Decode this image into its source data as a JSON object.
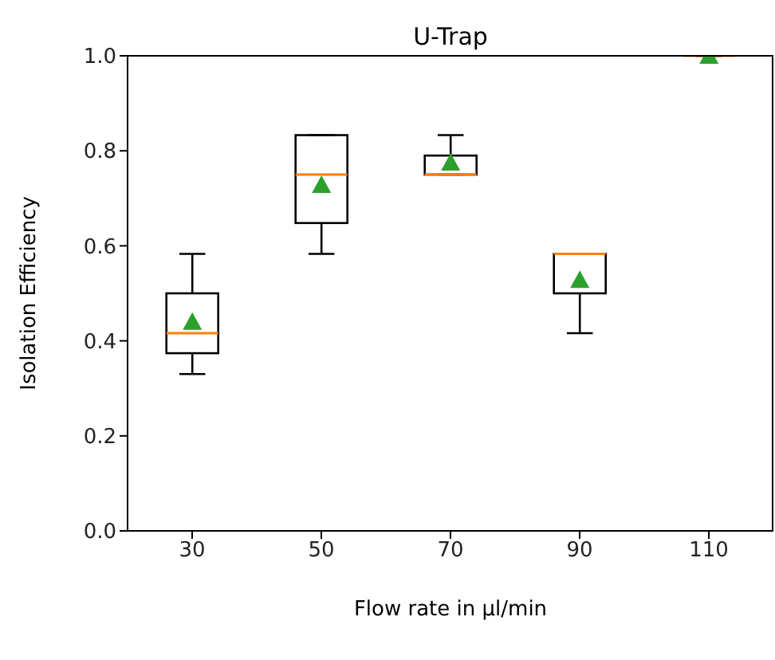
{
  "chart_data": {
    "type": "box",
    "title": "U-Trap",
    "xlabel": "Flow rate in μl/min",
    "ylabel": "Isolation Efficiency",
    "categories": [
      "30",
      "50",
      "70",
      "90",
      "110"
    ],
    "boxes": [
      {
        "low": 0.33,
        "q1": 0.374,
        "median": 0.416,
        "q3": 0.5,
        "high": 0.583,
        "mean": 0.44
      },
      {
        "low": 0.583,
        "q1": 0.648,
        "median": 0.75,
        "q3": 0.833,
        "high": 0.833,
        "mean": 0.728
      },
      {
        "low": 0.75,
        "q1": 0.75,
        "median": 0.75,
        "q3": 0.79,
        "high": 0.833,
        "mean": 0.775
      },
      {
        "low": 0.416,
        "q1": 0.5,
        "median": 0.583,
        "q3": 0.583,
        "high": 0.583,
        "mean": 0.528
      },
      {
        "low": 1.0,
        "q1": 1.0,
        "median": 1.0,
        "q3": 1.0,
        "high": 1.0,
        "mean": 1.0
      }
    ],
    "ylim": [
      0,
      1
    ],
    "yticks": [
      {
        "value": 0,
        "label": "0.0"
      },
      {
        "value": 0.2,
        "label": "0.2"
      },
      {
        "value": 0.4,
        "label": "0.4"
      },
      {
        "value": 0.6,
        "label": "0.6"
      },
      {
        "value": 0.8,
        "label": "0.8"
      },
      {
        "value": 1.0,
        "label": "1.0"
      }
    ],
    "grid": false,
    "legend": false
  }
}
